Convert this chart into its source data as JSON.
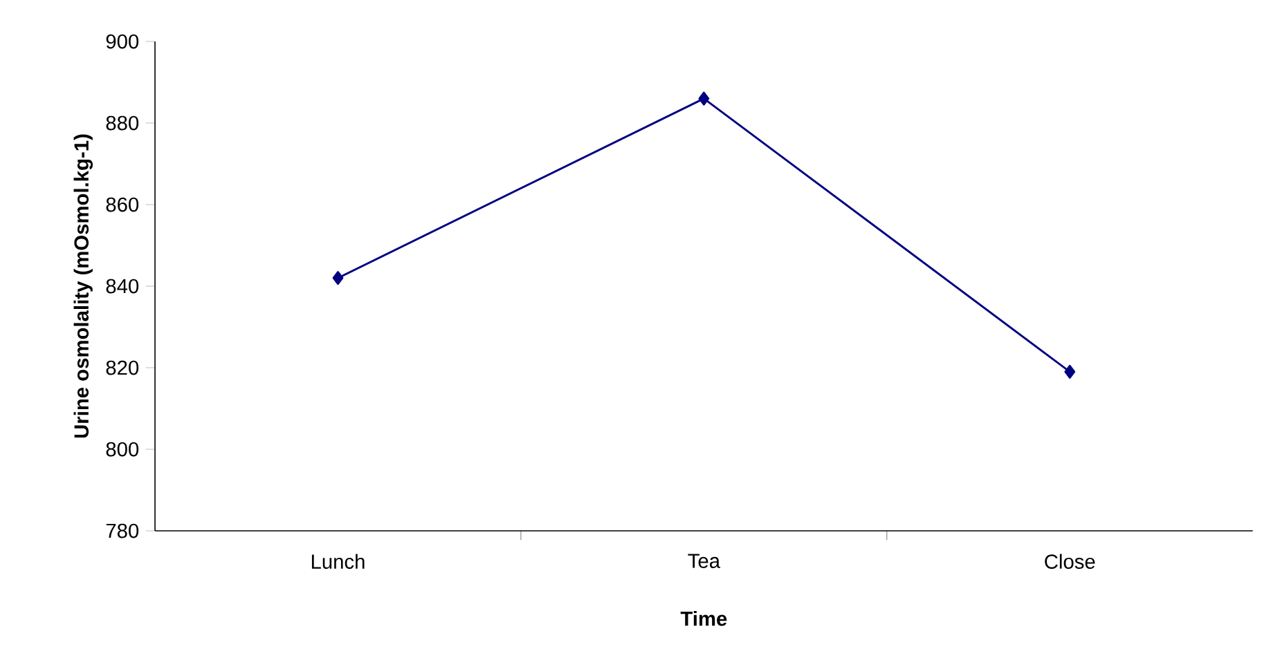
{
  "chart_data": {
    "type": "line",
    "xlabel": "Time",
    "ylabel": "Urine osmolality (mOsmol.kg-1)",
    "categories": [
      "Lunch",
      "Tea",
      "Close"
    ],
    "series": [
      {
        "color": "#000080",
        "values": [
          842,
          886,
          819
        ]
      }
    ],
    "ylim": [
      780,
      900
    ],
    "yticks": [
      780,
      800,
      820,
      840,
      860,
      880,
      900
    ],
    "marker": "diamond",
    "line_style": "solid"
  }
}
